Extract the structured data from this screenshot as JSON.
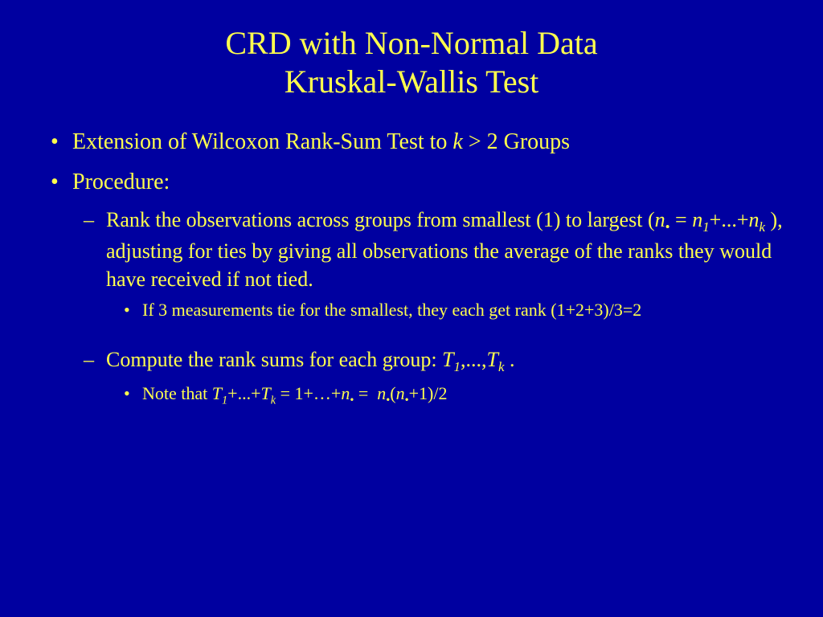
{
  "background_color": "#0000a0",
  "text_color": "#ffff4d",
  "title": {
    "line1": "CRD with Non-Normal Data",
    "line2": "Kruskal-Wallis Test",
    "fontsize": 40
  },
  "bullets": {
    "item1": "Extension of Wilcoxon Rank-Sum Test to k > 2 Groups",
    "item2": "Procedure:",
    "sub1": "Rank the observations across groups from smallest (1) to largest (n. = n1+...+nk ), adjusting for ties by giving all observations the average of the ranks they would have received if not tied.",
    "sub1_detail": "If 3 measurements tie for the smallest, they each get rank (1+2+3)/3=2",
    "sub2": "Compute the rank sums for each group: T1,...,Tk .",
    "sub2_detail": "Note that T1+...+Tk = 1+…+n. =  n.(n.+1)/2",
    "level1_fontsize": 28,
    "level2_fontsize": 26,
    "level3_fontsize": 22
  }
}
